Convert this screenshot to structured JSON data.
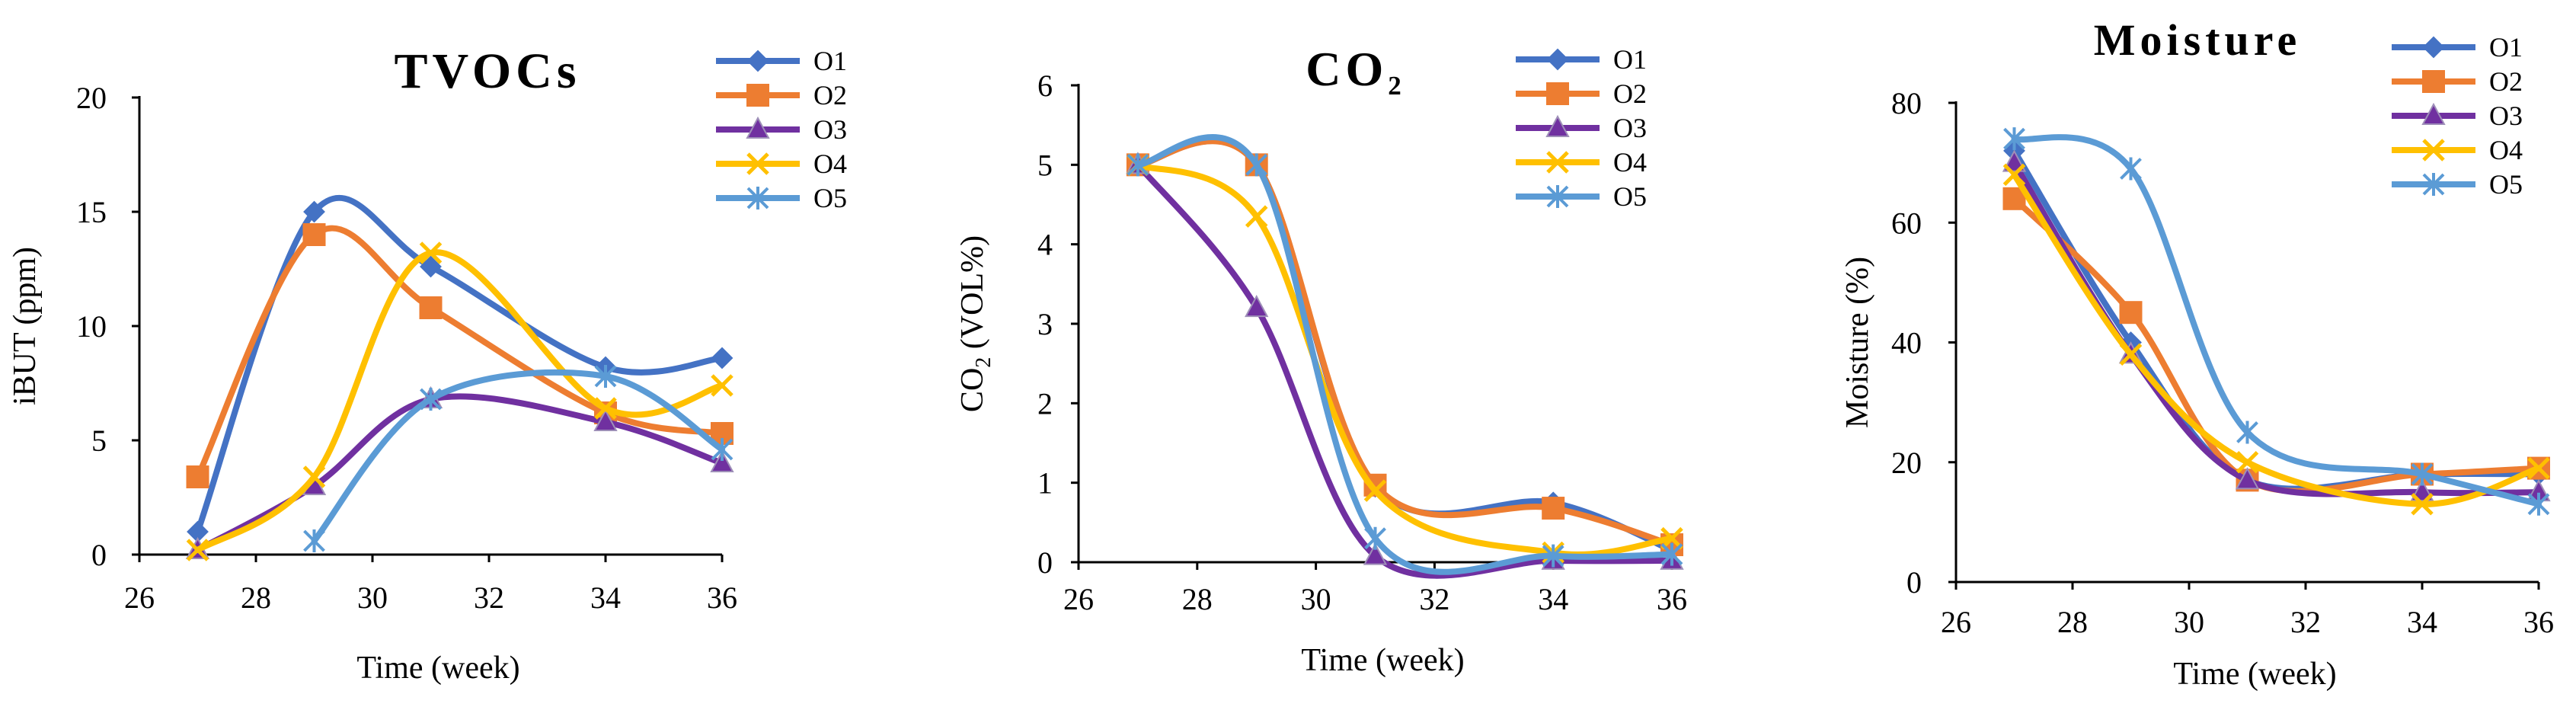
{
  "chart_data": [
    {
      "type": "line",
      "title": "TVOCs",
      "title_sub": "",
      "xlabel": "Time (week)",
      "ylabel": "iBUT (ppm)",
      "ylabel_sub": "",
      "ylabel_rest": "",
      "xlim": [
        26,
        36
      ],
      "ylim": [
        0,
        20
      ],
      "xticks": [
        "26",
        "28",
        "30",
        "32",
        "34",
        "36"
      ],
      "yticks": [
        "0",
        "5",
        "10",
        "15",
        "20"
      ],
      "series": [
        {
          "name": "O1",
          "x": [
            27,
            29,
            31,
            34,
            36
          ],
          "values": [
            1.0,
            15.0,
            12.6,
            8.2,
            8.6
          ]
        },
        {
          "name": "O2",
          "x": [
            27,
            29,
            31,
            34,
            36
          ],
          "values": [
            3.4,
            14.0,
            10.8,
            6.2,
            5.3
          ]
        },
        {
          "name": "O3",
          "x": [
            27,
            29,
            31,
            34,
            36
          ],
          "values": [
            0.2,
            3.0,
            6.8,
            5.8,
            4.0
          ]
        },
        {
          "name": "O4",
          "x": [
            27,
            29,
            31,
            34,
            36
          ],
          "values": [
            0.2,
            3.4,
            13.2,
            6.4,
            7.4
          ]
        },
        {
          "name": "O5",
          "x": [
            29,
            31,
            34,
            36
          ],
          "values": [
            0.6,
            6.8,
            7.8,
            4.6
          ]
        }
      ]
    },
    {
      "type": "line",
      "title": "CO",
      "title_sub": "2",
      "xlabel": "Time (week)",
      "ylabel": "CO",
      "ylabel_sub": "2",
      "ylabel_rest": " (VOL%)",
      "xlim": [
        26,
        36
      ],
      "ylim": [
        0,
        6
      ],
      "xticks": [
        "26",
        "28",
        "30",
        "32",
        "34",
        "36"
      ],
      "yticks": [
        "0",
        "1",
        "2",
        "3",
        "4",
        "5",
        "6"
      ],
      "series": [
        {
          "name": "O1",
          "x": [
            27,
            29,
            31,
            34,
            36
          ],
          "values": [
            5.0,
            5.0,
            0.95,
            0.75,
            0.15
          ]
        },
        {
          "name": "O2",
          "x": [
            27,
            29,
            31,
            34,
            36
          ],
          "values": [
            5.0,
            5.0,
            0.97,
            0.68,
            0.22
          ]
        },
        {
          "name": "O3",
          "x": [
            27,
            29,
            31,
            34,
            36
          ],
          "values": [
            5.0,
            3.2,
            0.08,
            0.02,
            0.02
          ]
        },
        {
          "name": "O4",
          "x": [
            27,
            29,
            31,
            34,
            36
          ],
          "values": [
            5.0,
            4.35,
            0.9,
            0.12,
            0.3
          ]
        },
        {
          "name": "O5",
          "x": [
            27,
            29,
            31,
            34,
            36
          ],
          "values": [
            5.0,
            5.0,
            0.3,
            0.08,
            0.1
          ]
        }
      ]
    },
    {
      "type": "line",
      "title": "Moisture",
      "title_sub": "",
      "xlabel": "Time (week)",
      "ylabel": "Moisture (%)",
      "ylabel_sub": "",
      "ylabel_rest": "",
      "xlim": [
        26,
        36
      ],
      "ylim": [
        0,
        80
      ],
      "xticks": [
        "26",
        "28",
        "30",
        "32",
        "34",
        "36"
      ],
      "yticks": [
        "0",
        "20",
        "40",
        "60",
        "80"
      ],
      "series": [
        {
          "name": "O1",
          "x": [
            27,
            29,
            31,
            34,
            36
          ],
          "values": [
            72,
            40,
            17,
            18,
            18
          ]
        },
        {
          "name": "O2",
          "x": [
            27,
            29,
            31,
            34,
            36
          ],
          "values": [
            64,
            45,
            17,
            18,
            19
          ]
        },
        {
          "name": "O3",
          "x": [
            27,
            29,
            31,
            34,
            36
          ],
          "values": [
            70,
            38,
            17,
            15,
            15
          ]
        },
        {
          "name": "O4",
          "x": [
            27,
            29,
            31,
            34,
            36
          ],
          "values": [
            68,
            38,
            20,
            13,
            19
          ]
        },
        {
          "name": "O5",
          "x": [
            27,
            29,
            31,
            34,
            36
          ],
          "values": [
            74,
            69,
            25,
            18,
            13
          ]
        }
      ]
    }
  ],
  "series_styles": [
    {
      "color": "#4472C4",
      "marker": "diamond"
    },
    {
      "color": "#ED7D31",
      "marker": "square"
    },
    {
      "color": "#7030A0",
      "marker": "triangle"
    },
    {
      "color": "#FFC000",
      "marker": "x"
    },
    {
      "color": "#5B9BD5",
      "marker": "star"
    }
  ]
}
